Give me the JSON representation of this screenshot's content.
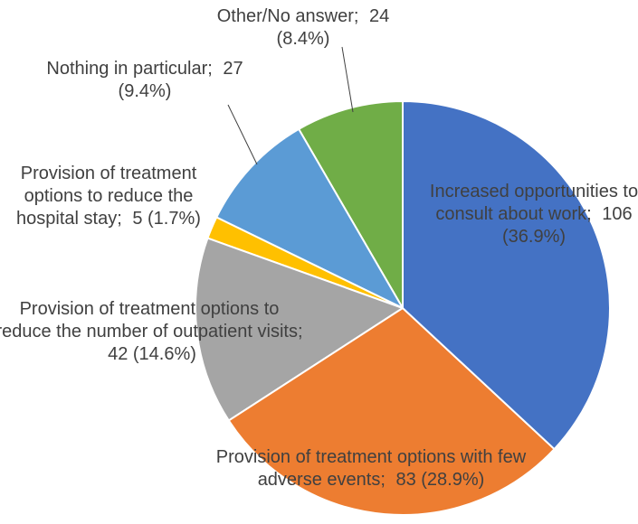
{
  "chart_data": {
    "type": "pie",
    "categories": [
      "Increased opportunities to consult about work;",
      "Provision of treatment options with few adverse events;",
      "Provision of treatment options to reduce the number of outpatient visits;",
      "Provision of treatment options to reduce the hospital stay;",
      "Nothing in particular;",
      "Other/No answer;"
    ],
    "values": [
      106,
      83,
      42,
      5,
      27,
      24
    ],
    "value_labels": [
      "106 (36.9%)",
      "83 (28.9%)",
      "42 (14.6%)",
      "5 (1.7%)",
      "27 (9.4%)",
      "24 (8.4%)"
    ],
    "colors": [
      "#4472c4",
      "#ed7d31",
      "#a5a5a5",
      "#ffc000",
      "#5b9bd5",
      "#70ad47"
    ]
  }
}
